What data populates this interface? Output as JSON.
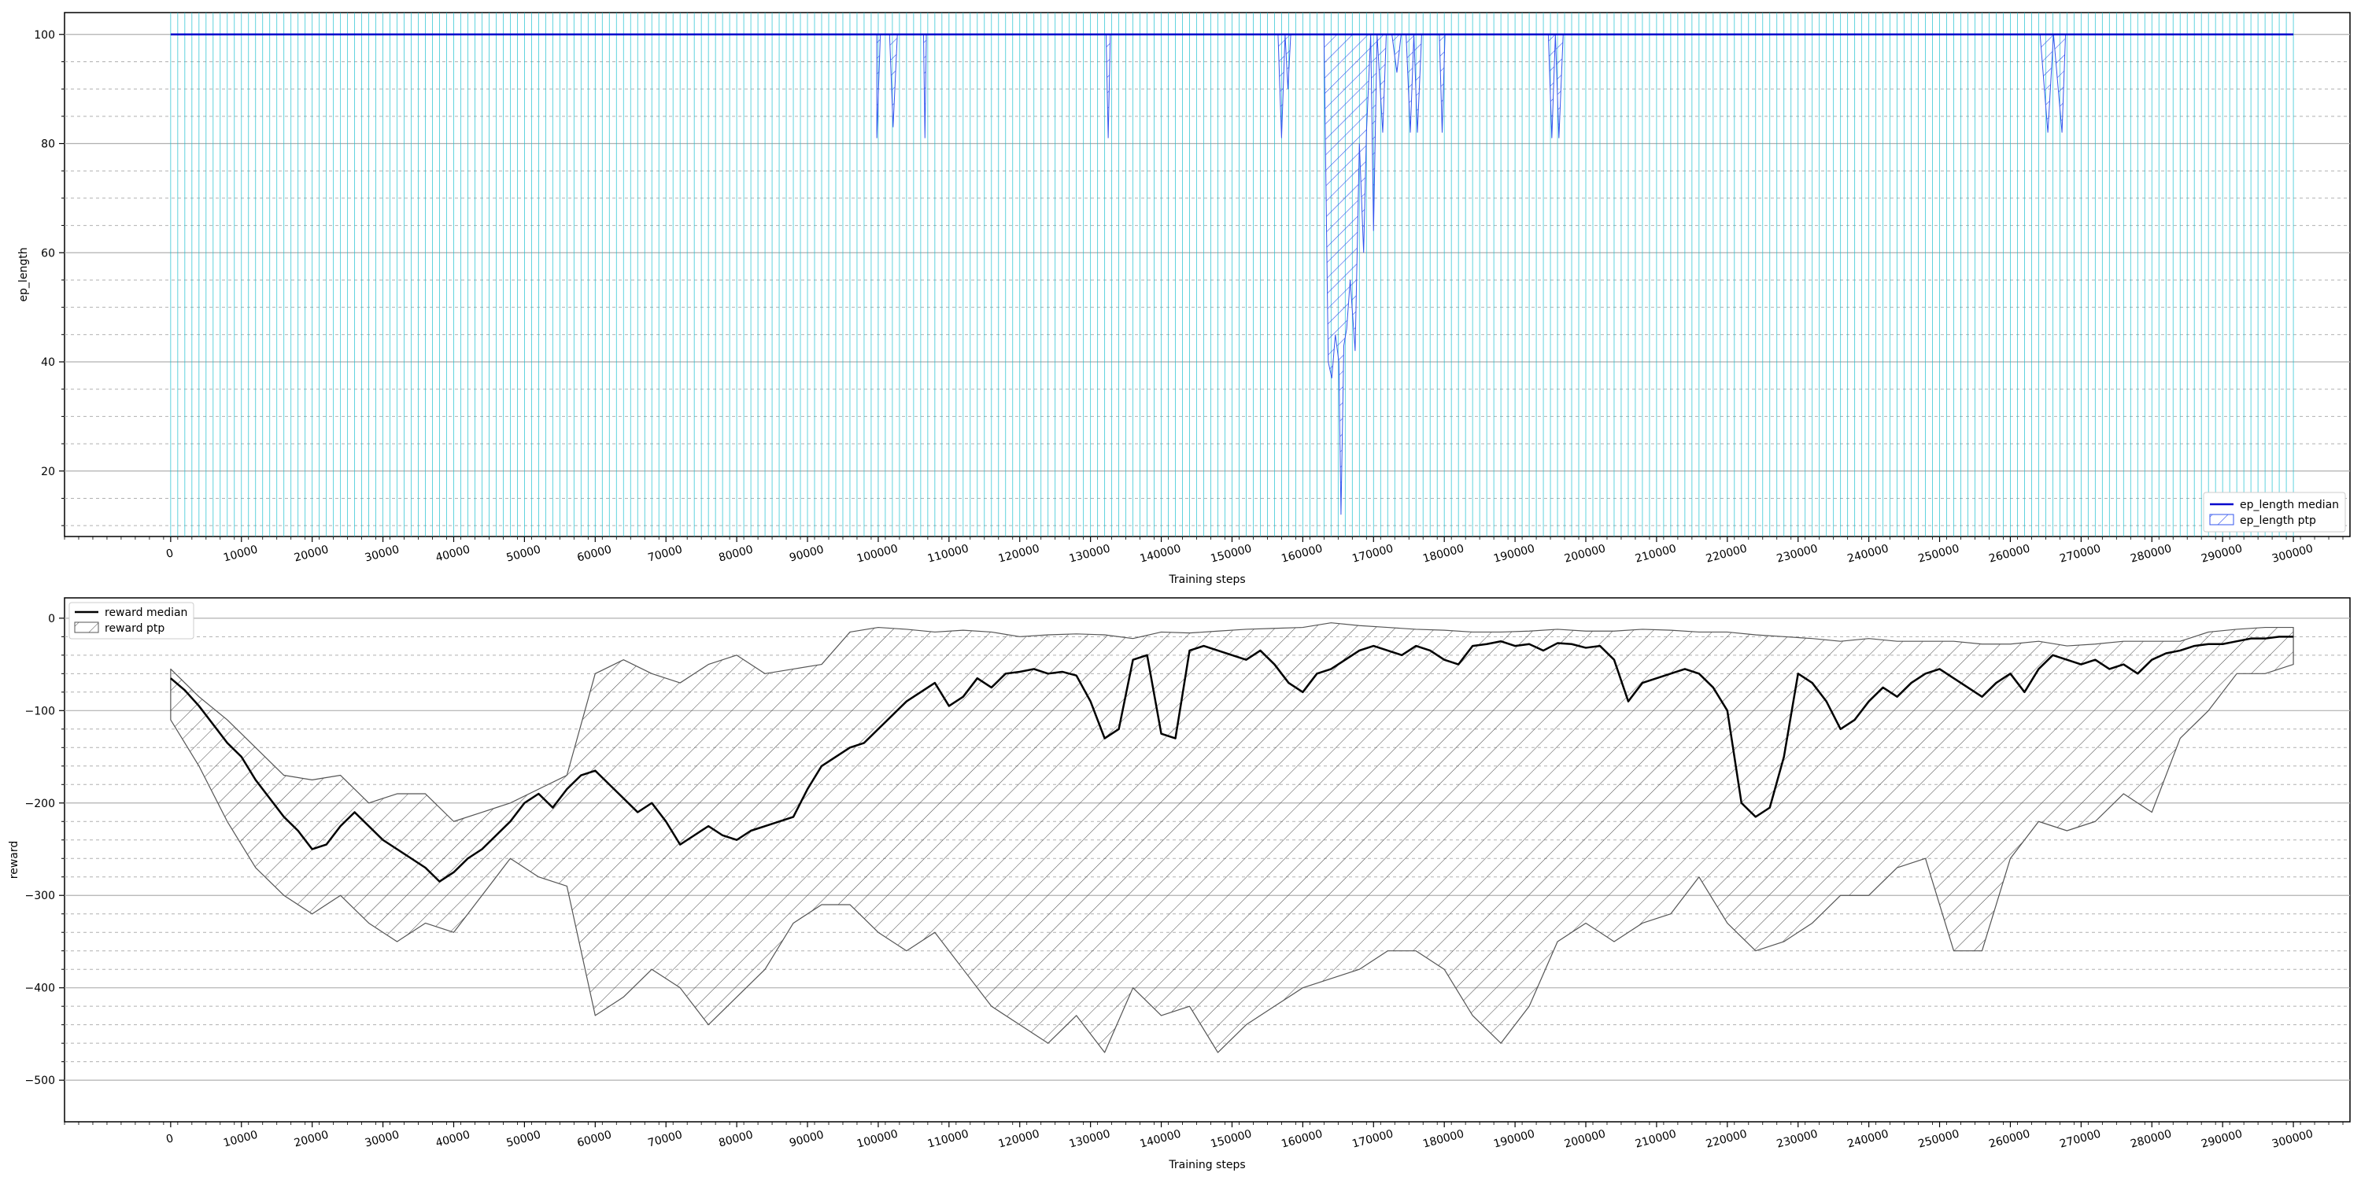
{
  "chart_data": [
    {
      "type": "line",
      "xlabel": "Training steps",
      "ylabel": "ep_length",
      "xlim": [
        -15000,
        308000
      ],
      "ylim": [
        8,
        104
      ],
      "xticks": [
        0,
        10000,
        20000,
        30000,
        40000,
        50000,
        60000,
        70000,
        80000,
        90000,
        100000,
        110000,
        120000,
        130000,
        140000,
        150000,
        160000,
        170000,
        180000,
        190000,
        200000,
        210000,
        220000,
        230000,
        240000,
        250000,
        260000,
        270000,
        280000,
        290000,
        300000
      ],
      "yticks": [
        20,
        40,
        60,
        80,
        100
      ],
      "yminor_gridlines": [
        10,
        15,
        25,
        30,
        35,
        45,
        50,
        55,
        65,
        70,
        75,
        85,
        90,
        95
      ],
      "grid": true,
      "legend_position": "lower right",
      "episode_markers": {
        "start": 0,
        "end": 300000,
        "step": 1000,
        "color": "#17becf"
      },
      "series": [
        {
          "name": "ep_length median",
          "style": "line",
          "color": "#0000cc",
          "x": [
            0,
            300000
          ],
          "y": [
            100,
            100
          ]
        },
        {
          "name": "ep_length ptp",
          "style": "band",
          "color": "#3355ee",
          "upper": 100,
          "dips": [
            [
              99800,
              81
            ],
            [
              100300,
              100
            ],
            [
              101600,
              100
            ],
            [
              102100,
              83
            ],
            [
              102700,
              100
            ],
            [
              106400,
              100
            ],
            [
              106600,
              81
            ],
            [
              106800,
              100
            ],
            [
              132200,
              100
            ],
            [
              132500,
              81
            ],
            [
              132800,
              100
            ],
            [
              156500,
              100
            ],
            [
              157000,
              81
            ],
            [
              157500,
              100
            ],
            [
              157900,
              90
            ],
            [
              158300,
              100
            ],
            [
              163000,
              100
            ],
            [
              163600,
              40
            ],
            [
              164100,
              37
            ],
            [
              164600,
              45
            ],
            [
              165100,
              40
            ],
            [
              165400,
              12
            ],
            [
              165800,
              43
            ],
            [
              166200,
              46
            ],
            [
              166700,
              55
            ],
            [
              167400,
              42
            ],
            [
              168000,
              80
            ],
            [
              168600,
              60
            ],
            [
              169000,
              82
            ],
            [
              169600,
              100
            ],
            [
              170000,
              64
            ],
            [
              170500,
              100
            ],
            [
              171300,
              82
            ],
            [
              171800,
              100
            ],
            [
              172600,
              100
            ],
            [
              173300,
              93
            ],
            [
              173900,
              100
            ],
            [
              174600,
              100
            ],
            [
              175200,
              82
            ],
            [
              175700,
              100
            ],
            [
              176200,
              82
            ],
            [
              176800,
              100
            ],
            [
              179300,
              100
            ],
            [
              179700,
              82
            ],
            [
              180100,
              100
            ],
            [
              194700,
              100
            ],
            [
              195200,
              81
            ],
            [
              195700,
              100
            ],
            [
              196200,
              81
            ],
            [
              196800,
              100
            ],
            [
              264200,
              100
            ],
            [
              265300,
              82
            ],
            [
              266100,
              100
            ],
            [
              267300,
              82
            ],
            [
              267800,
              100
            ]
          ]
        }
      ]
    },
    {
      "type": "line",
      "xlabel": "Training steps",
      "ylabel": "reward",
      "xlim": [
        -15000,
        308000
      ],
      "ylim": [
        -545,
        22
      ],
      "xticks": [
        0,
        10000,
        20000,
        30000,
        40000,
        50000,
        60000,
        70000,
        80000,
        90000,
        100000,
        110000,
        120000,
        130000,
        140000,
        150000,
        160000,
        170000,
        180000,
        190000,
        200000,
        210000,
        220000,
        230000,
        240000,
        250000,
        260000,
        270000,
        280000,
        290000,
        300000
      ],
      "yticks": [
        0,
        -100,
        -200,
        -300,
        -400,
        -500
      ],
      "yminor_gridlines": [
        -20,
        -40,
        -60,
        -80,
        -120,
        -140,
        -160,
        -180,
        -220,
        -240,
        -260,
        -280,
        -320,
        -340,
        -360,
        -380,
        -420,
        -440,
        -460,
        -480
      ],
      "grid": true,
      "legend_position": "upper left",
      "series": [
        {
          "name": "reward median",
          "style": "line",
          "color": "#000000",
          "x": [
            0,
            2000,
            4000,
            6000,
            8000,
            10000,
            12000,
            14000,
            16000,
            18000,
            20000,
            22000,
            24000,
            26000,
            28000,
            30000,
            32000,
            34000,
            36000,
            38000,
            40000,
            42000,
            44000,
            46000,
            48000,
            50000,
            52000,
            54000,
            56000,
            58000,
            60000,
            62000,
            64000,
            66000,
            68000,
            70000,
            72000,
            74000,
            76000,
            78000,
            80000,
            82000,
            84000,
            86000,
            88000,
            90000,
            92000,
            94000,
            96000,
            98000,
            100000,
            102000,
            104000,
            106000,
            108000,
            110000,
            112000,
            114000,
            116000,
            118000,
            120000,
            122000,
            124000,
            126000,
            128000,
            130000,
            132000,
            134000,
            136000,
            138000,
            140000,
            142000,
            144000,
            146000,
            148000,
            150000,
            152000,
            154000,
            156000,
            158000,
            160000,
            162000,
            164000,
            166000,
            168000,
            170000,
            172000,
            174000,
            176000,
            178000,
            180000,
            182000,
            184000,
            186000,
            188000,
            190000,
            192000,
            194000,
            196000,
            198000,
            200000,
            202000,
            204000,
            206000,
            208000,
            210000,
            212000,
            214000,
            216000,
            218000,
            220000,
            222000,
            224000,
            226000,
            228000,
            230000,
            232000,
            234000,
            236000,
            238000,
            240000,
            242000,
            244000,
            246000,
            248000,
            250000,
            252000,
            254000,
            256000,
            258000,
            260000,
            262000,
            264000,
            266000,
            268000,
            270000,
            272000,
            274000,
            276000,
            278000,
            280000,
            282000,
            284000,
            286000,
            288000,
            290000,
            292000,
            294000,
            296000,
            298000,
            300000
          ],
          "y": [
            -65,
            -78,
            -95,
            -115,
            -135,
            -150,
            -175,
            -195,
            -215,
            -230,
            -250,
            -245,
            -225,
            -210,
            -225,
            -240,
            -250,
            -260,
            -270,
            -285,
            -275,
            -260,
            -250,
            -235,
            -220,
            -200,
            -190,
            -205,
            -185,
            -170,
            -165,
            -180,
            -195,
            -210,
            -200,
            -220,
            -245,
            -235,
            -225,
            -235,
            -240,
            -230,
            -225,
            -220,
            -215,
            -185,
            -160,
            -150,
            -140,
            -135,
            -120,
            -105,
            -90,
            -80,
            -70,
            -95,
            -85,
            -65,
            -75,
            -60,
            -58,
            -55,
            -60,
            -58,
            -62,
            -90,
            -130,
            -120,
            -45,
            -40,
            -125,
            -130,
            -35,
            -30,
            -35,
            -40,
            -45,
            -35,
            -50,
            -70,
            -80,
            -60,
            -55,
            -45,
            -35,
            -30,
            -35,
            -40,
            -30,
            -35,
            -45,
            -50,
            -30,
            -28,
            -25,
            -30,
            -28,
            -35,
            -27,
            -28,
            -32,
            -30,
            -45,
            -90,
            -70,
            -65,
            -60,
            -55,
            -60,
            -75,
            -100,
            -200,
            -215,
            -205,
            -150,
            -60,
            -70,
            -90,
            -120,
            -110,
            -90,
            -75,
            -85,
            -70,
            -60,
            -55,
            -65,
            -75,
            -85,
            -70,
            -60,
            -80,
            -55,
            -40,
            -45,
            -50,
            -45,
            -55,
            -50,
            -60,
            -45,
            -38,
            -35,
            -30,
            -28,
            -28,
            -25,
            -22,
            -22,
            -20,
            -20
          ]
        },
        {
          "name": "reward ptp",
          "style": "band",
          "color": "#555555",
          "x": [
            0,
            4000,
            8000,
            12000,
            16000,
            20000,
            24000,
            28000,
            32000,
            36000,
            40000,
            44000,
            48000,
            52000,
            56000,
            60000,
            64000,
            68000,
            72000,
            76000,
            80000,
            84000,
            88000,
            92000,
            96000,
            100000,
            104000,
            108000,
            112000,
            116000,
            120000,
            124000,
            128000,
            132000,
            136000,
            140000,
            144000,
            148000,
            152000,
            156000,
            160000,
            164000,
            168000,
            172000,
            176000,
            180000,
            184000,
            188000,
            192000,
            196000,
            200000,
            204000,
            208000,
            212000,
            216000,
            220000,
            224000,
            228000,
            232000,
            236000,
            240000,
            244000,
            248000,
            252000,
            256000,
            260000,
            264000,
            268000,
            272000,
            276000,
            280000,
            284000,
            288000,
            292000,
            296000,
            300000
          ],
          "upper": [
            -55,
            -85,
            -110,
            -140,
            -170,
            -175,
            -170,
            -200,
            -190,
            -190,
            -220,
            -210,
            -200,
            -185,
            -170,
            -60,
            -45,
            -60,
            -70,
            -50,
            -40,
            -60,
            -55,
            -50,
            -15,
            -10,
            -12,
            -15,
            -13,
            -15,
            -20,
            -18,
            -17,
            -18,
            -22,
            -15,
            -16,
            -14,
            -12,
            -11,
            -10,
            -5,
            -8,
            -10,
            -12,
            -13,
            -15,
            -15,
            -14,
            -12,
            -14,
            -14,
            -12,
            -13,
            -15,
            -15,
            -18,
            -20,
            -22,
            -25,
            -22,
            -25,
            -25,
            -25,
            -28,
            -28,
            -25,
            -30,
            -28,
            -25,
            -25,
            -25,
            -15,
            -12,
            -10,
            -10
          ],
          "lower": [
            -110,
            -160,
            -220,
            -270,
            -300,
            -320,
            -300,
            -330,
            -350,
            -330,
            -340,
            -300,
            -260,
            -280,
            -290,
            -430,
            -410,
            -380,
            -400,
            -440,
            -410,
            -380,
            -330,
            -310,
            -310,
            -340,
            -360,
            -340,
            -380,
            -420,
            -440,
            -460,
            -430,
            -470,
            -400,
            -430,
            -420,
            -470,
            -440,
            -420,
            -400,
            -390,
            -380,
            -360,
            -360,
            -380,
            -430,
            -460,
            -420,
            -350,
            -330,
            -350,
            -330,
            -320,
            -280,
            -330,
            -360,
            -350,
            -330,
            -300,
            -300,
            -270,
            -260,
            -360,
            -360,
            -260,
            -220,
            -230,
            -220,
            -190,
            -210,
            -130,
            -100,
            -60,
            -60,
            -50
          ]
        }
      ]
    }
  ]
}
